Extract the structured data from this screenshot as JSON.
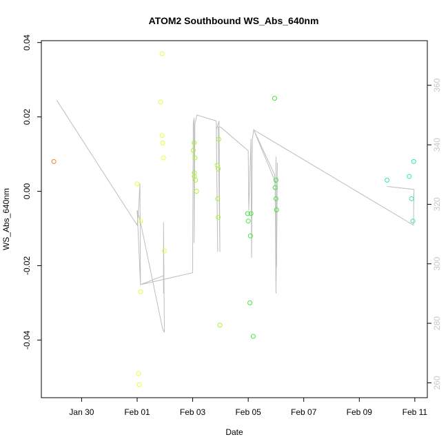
{
  "chart_data": {
    "type": "scatter",
    "title": "ATOM2 Southbound WS_Abs_640nm",
    "xlabel": "Date",
    "ylabel": "WS_Abs_640nm",
    "x_range_days": [
      -3.4,
      10.3
    ],
    "xlim_day_offsets_from_feb01": [
      -3.45,
      10.45
    ],
    "ylim": [
      -0.0555,
      0.0405
    ],
    "y2lim": [
      255,
      375
    ],
    "x_ticks": [
      {
        "label": "Jan 30",
        "day": -2
      },
      {
        "label": "Feb 01",
        "day": 0
      },
      {
        "label": "Feb 03",
        "day": 2
      },
      {
        "label": "Feb 05",
        "day": 4
      },
      {
        "label": "Feb 07",
        "day": 6
      },
      {
        "label": "Feb 09",
        "day": 8
      },
      {
        "label": "Feb 11",
        "day": 10
      }
    ],
    "y_ticks": [
      {
        "label": "0.04",
        "value": 0.04
      },
      {
        "label": "0.02",
        "value": 0.02
      },
      {
        "label": "0.00",
        "value": 0.0
      },
      {
        "label": "-0.02",
        "value": -0.02
      },
      {
        "label": "-0.04",
        "value": -0.04
      }
    ],
    "y2_ticks": [
      {
        "label": "260",
        "value": 260
      },
      {
        "label": "280",
        "value": 280
      },
      {
        "label": "300",
        "value": 300
      },
      {
        "label": "320",
        "value": 320
      },
      {
        "label": "340",
        "value": 340
      },
      {
        "label": "360",
        "value": 360
      }
    ],
    "points": [
      {
        "day": -3.0,
        "value": 0.008,
        "color": "#ff7f2a"
      },
      {
        "day": 0.0,
        "value": 0.002,
        "color": "#e4ff3a"
      },
      {
        "day": 0.05,
        "value": -0.049,
        "color": "#e4ff3a"
      },
      {
        "day": 0.08,
        "value": -0.052,
        "color": "#e4ff3a"
      },
      {
        "day": 0.12,
        "value": -0.008,
        "color": "#e4ff3a"
      },
      {
        "day": 0.12,
        "value": -0.027,
        "color": "#e4ff3a"
      },
      {
        "day": 0.85,
        "value": 0.024,
        "color": "#e4ff3a"
      },
      {
        "day": 0.9,
        "value": 0.037,
        "color": "#e4ff3a"
      },
      {
        "day": 0.9,
        "value": 0.015,
        "color": "#e4ff3a"
      },
      {
        "day": 0.92,
        "value": 0.013,
        "color": "#e4ff3a"
      },
      {
        "day": 0.95,
        "value": 0.009,
        "color": "#e4ff3a"
      },
      {
        "day": 0.98,
        "value": -0.016,
        "color": "#e4ff3a"
      },
      {
        "day": 2.02,
        "value": 0.011,
        "color": "#a8f52a"
      },
      {
        "day": 2.05,
        "value": 0.013,
        "color": "#a8f52a"
      },
      {
        "day": 2.06,
        "value": 0.005,
        "color": "#a8f52a"
      },
      {
        "day": 2.06,
        "value": 0.004,
        "color": "#a8f52a"
      },
      {
        "day": 2.08,
        "value": 0.009,
        "color": "#a8f52a"
      },
      {
        "day": 2.1,
        "value": 0.003,
        "color": "#a8f52a"
      },
      {
        "day": 2.14,
        "value": 0.0,
        "color": "#a8f52a"
      },
      {
        "day": 2.88,
        "value": 0.007,
        "color": "#a8f52a"
      },
      {
        "day": 2.9,
        "value": -0.002,
        "color": "#a8f52a"
      },
      {
        "day": 2.92,
        "value": 0.006,
        "color": "#a8f52a"
      },
      {
        "day": 2.92,
        "value": -0.007,
        "color": "#a8f52a"
      },
      {
        "day": 2.94,
        "value": 0.014,
        "color": "#a8f52a"
      },
      {
        "day": 2.98,
        "value": -0.036,
        "color": "#a8f52a"
      },
      {
        "day": 3.98,
        "value": -0.006,
        "color": "#3ee83a"
      },
      {
        "day": 4.0,
        "value": -0.008,
        "color": "#3ee83a"
      },
      {
        "day": 4.06,
        "value": -0.03,
        "color": "#3ee83a"
      },
      {
        "day": 4.08,
        "value": -0.012,
        "color": "#3ee83a"
      },
      {
        "day": 4.1,
        "value": -0.006,
        "color": "#3ee83a"
      },
      {
        "day": 4.18,
        "value": -0.039,
        "color": "#3ee83a"
      },
      {
        "day": 4.95,
        "value": 0.025,
        "color": "#3ee83a"
      },
      {
        "day": 4.97,
        "value": 0.001,
        "color": "#3ee83a"
      },
      {
        "day": 5.0,
        "value": 0.003,
        "color": "#3ee83a"
      },
      {
        "day": 5.0,
        "value": -0.002,
        "color": "#3ee83a"
      },
      {
        "day": 5.02,
        "value": -0.005,
        "color": "#3ee83a"
      },
      {
        "day": 9.0,
        "value": 0.003,
        "color": "#2ee8a0"
      },
      {
        "day": 9.8,
        "value": 0.004,
        "color": "#2ee8a0"
      },
      {
        "day": 9.88,
        "value": -0.002,
        "color": "#2ee8a0"
      },
      {
        "day": 9.93,
        "value": -0.008,
        "color": "#2ee8a0"
      },
      {
        "day": 9.96,
        "value": 0.008,
        "color": "#2ee8a0"
      }
    ],
    "secondary_line": {
      "name": "heading/secondary axis track",
      "color": "#bdbdbd",
      "points": [
        [
          -2.9,
          355
        ],
        [
          0.0,
          313
        ],
        [
          0.05,
          318
        ],
        [
          0.1,
          327
        ],
        [
          0.12,
          293
        ],
        [
          0.95,
          296
        ],
        [
          0.95,
          290
        ],
        [
          0.95,
          314
        ],
        [
          0.98,
          277
        ],
        [
          0.92,
          278
        ],
        [
          0.12,
          314
        ],
        [
          0.0,
          318
        ],
        [
          0.12,
          293
        ],
        [
          2.0,
          297
        ],
        [
          2.0,
          305
        ],
        [
          2.02,
          347
        ],
        [
          2.05,
          349
        ],
        [
          2.05,
          307
        ],
        [
          2.08,
          347
        ],
        [
          2.15,
          350
        ],
        [
          2.85,
          348
        ],
        [
          2.9,
          304
        ],
        [
          2.85,
          345
        ],
        [
          2.95,
          348
        ],
        [
          2.98,
          304
        ],
        [
          2.92,
          346
        ],
        [
          3.0,
          346
        ],
        [
          4.0,
          338
        ],
        [
          4.02,
          318
        ],
        [
          4.1,
          342
        ],
        [
          4.12,
          302
        ],
        [
          4.15,
          342
        ],
        [
          4.2,
          345
        ],
        [
          5.0,
          327
        ],
        [
          5.0,
          336
        ],
        [
          5.02,
          299
        ],
        [
          5.05,
          334
        ],
        [
          5.0,
          290
        ],
        [
          4.97,
          325
        ],
        [
          4.95,
          330
        ],
        [
          4.2,
          345
        ],
        [
          9.95,
          313
        ],
        [
          9.97,
          325
        ],
        [
          9.0,
          326
        ]
      ]
    }
  }
}
